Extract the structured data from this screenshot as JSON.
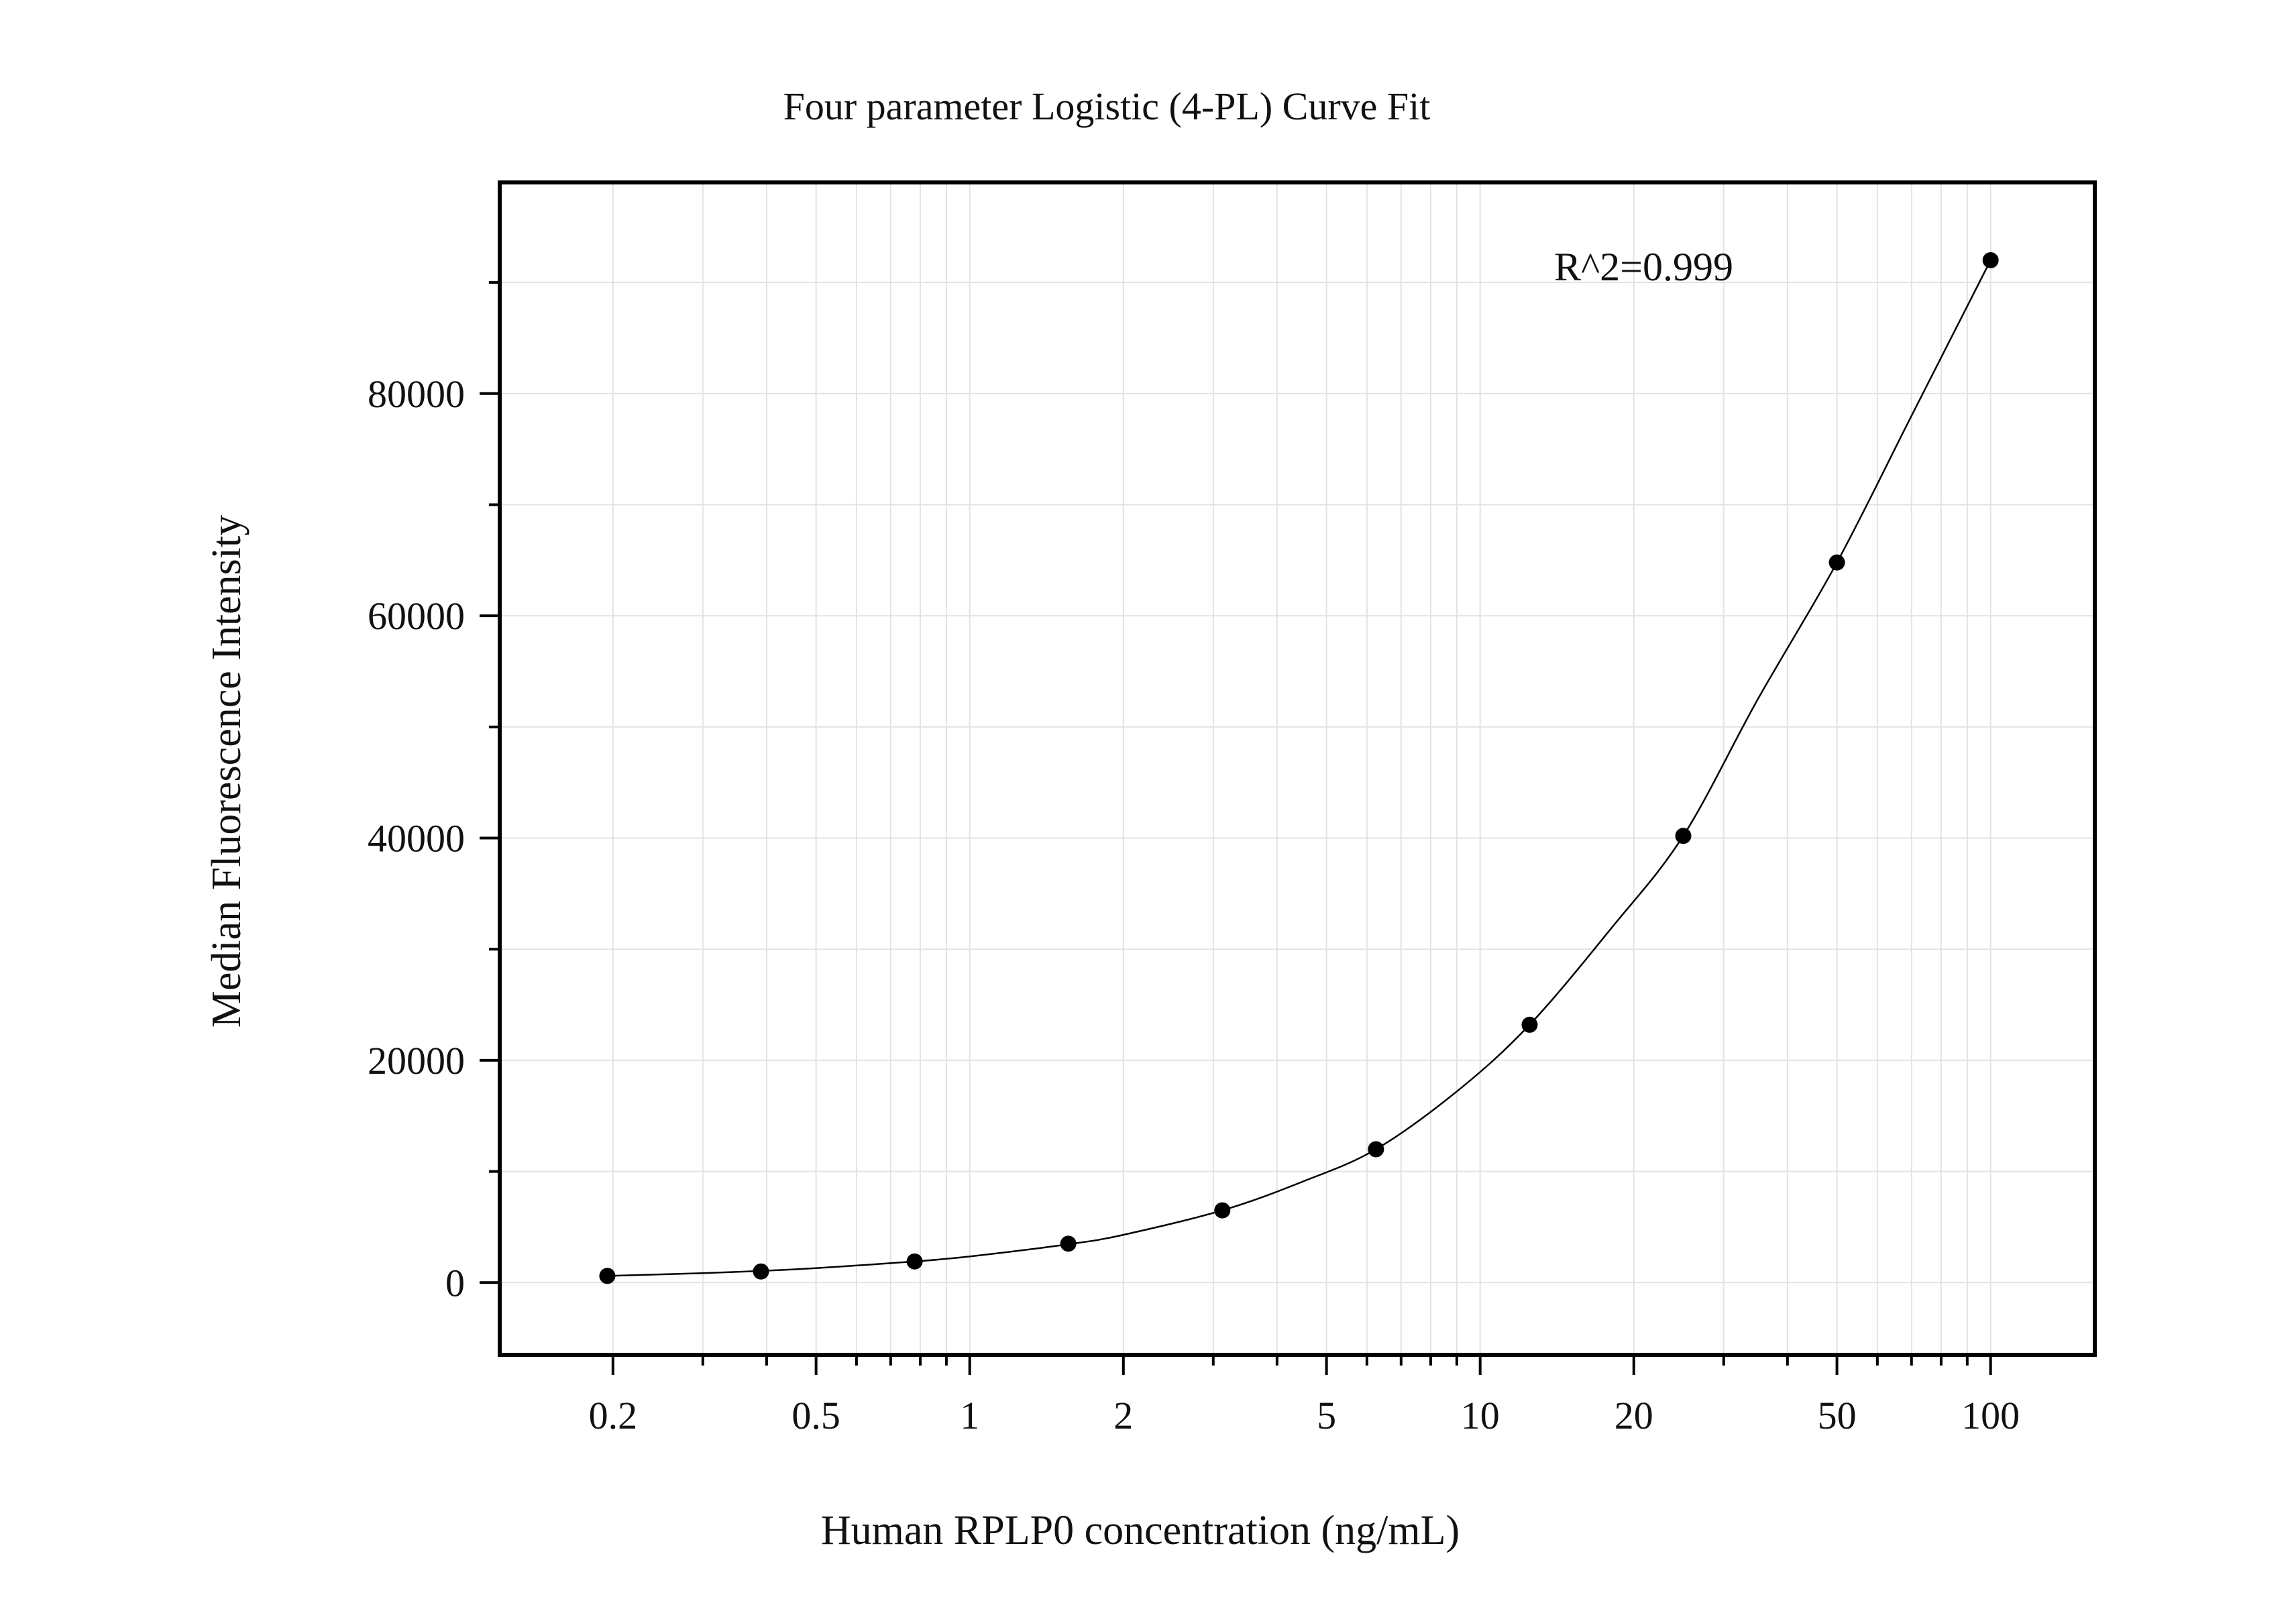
{
  "chart_data": {
    "type": "scatter",
    "title": "Four parameter Logistic (4-PL) Curve Fit",
    "xlabel": "Human RPLP0 concentration (ng/mL)",
    "ylabel": "Median Fluorescence Intensity",
    "x_scale": "log",
    "xlim": [
      0.12,
      160
    ],
    "ylim": [
      -6500,
      99000
    ],
    "x_ticks": [
      0.2,
      0.5,
      1,
      2,
      5,
      10,
      20,
      50,
      100
    ],
    "x_tick_labels": [
      "0.2",
      "0.5",
      "1",
      "2",
      "5",
      "10",
      "20",
      "50",
      "100"
    ],
    "y_ticks": [
      0,
      20000,
      40000,
      60000,
      80000
    ],
    "y_tick_labels": [
      "0",
      "20000",
      "40000",
      "60000",
      "80000"
    ],
    "grid": true,
    "annotation": "R^2=0.999",
    "series": [
      {
        "x": [
          0.195,
          0.39,
          0.78,
          1.56,
          3.125,
          6.25,
          12.5,
          25,
          50,
          100
        ],
        "y": [
          600,
          1000,
          1900,
          3500,
          6500,
          12000,
          23200,
          40200,
          64800,
          92000
        ]
      }
    ],
    "fit_curve": {
      "x": [
        0.195,
        0.3,
        0.39,
        0.5,
        0.78,
        1.0,
        1.56,
        2.0,
        3.125,
        4.5,
        6.25,
        9.0,
        12.5,
        18,
        25,
        35,
        50,
        70,
        100
      ],
      "y": [
        600,
        850,
        1050,
        1300,
        1900,
        2350,
        3450,
        4300,
        6500,
        9100,
        12000,
        17200,
        23200,
        31800,
        40200,
        52500,
        64800,
        78000,
        92000
      ]
    },
    "colors": {
      "marker": "#000000",
      "curve": "#000000",
      "grid": "#e3e3e3",
      "frame": "#000000"
    }
  }
}
